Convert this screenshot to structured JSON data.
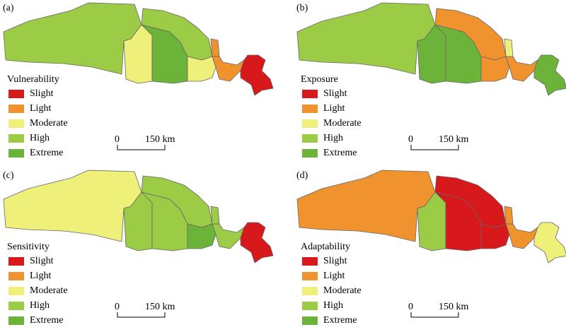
{
  "panels": [
    {
      "label": "(a)",
      "title": "Vulnerability",
      "legend": [
        "Slight",
        "Light",
        "Moderate",
        "High",
        "Extreme"
      ],
      "scale": {
        "start": "0",
        "end": "150 km"
      }
    },
    {
      "label": "(b)",
      "title": "Exposure",
      "legend": [
        "Slight",
        "Light",
        "Moderate",
        "High",
        "Extreme"
      ],
      "scale": {
        "start": "0",
        "end": "150 km"
      }
    },
    {
      "label": "(c)",
      "title": "Sensitivity",
      "legend": [
        "Slight",
        "Light",
        "Moderate",
        "High",
        "Extreme"
      ],
      "scale": {
        "start": "0",
        "end": "150 km"
      }
    },
    {
      "label": "(d)",
      "title": "Adaptability",
      "legend": [
        "Slight",
        "Light",
        "Moderate",
        "High",
        "Extreme"
      ],
      "scale": {
        "start": "0",
        "end": "150 km"
      }
    }
  ]
}
